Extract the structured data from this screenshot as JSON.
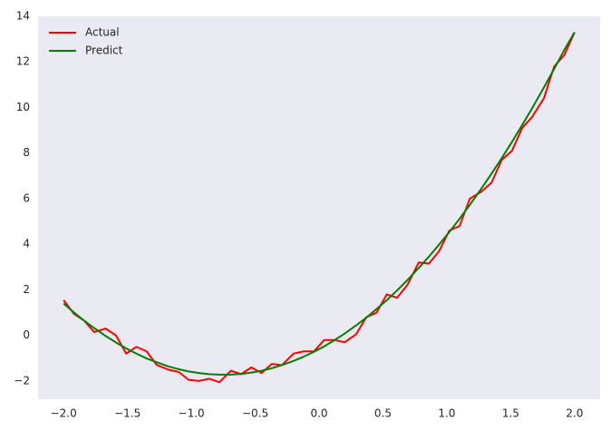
{
  "chart_data": {
    "type": "line",
    "x": [
      -2.0,
      -1.92,
      -1.84,
      -1.76,
      -1.67,
      -1.59,
      -1.51,
      -1.43,
      -1.35,
      -1.27,
      -1.18,
      -1.1,
      -1.02,
      -0.94,
      -0.86,
      -0.78,
      -0.69,
      -0.61,
      -0.53,
      -0.45,
      -0.37,
      -0.29,
      -0.2,
      -0.12,
      -0.04,
      0.04,
      0.12,
      0.2,
      0.29,
      0.37,
      0.45,
      0.53,
      0.61,
      0.69,
      0.78,
      0.86,
      0.94,
      1.02,
      1.1,
      1.18,
      1.27,
      1.35,
      1.43,
      1.51,
      1.59,
      1.67,
      1.76,
      1.84,
      1.92,
      2.0
    ],
    "series": [
      {
        "name": "Actual",
        "color": "#ff0000",
        "values": [
          1.55,
          0.95,
          0.65,
          0.15,
          0.3,
          0.0,
          -0.8,
          -0.5,
          -0.7,
          -1.3,
          -1.5,
          -1.6,
          -1.95,
          -2.0,
          -1.9,
          -2.05,
          -1.55,
          -1.7,
          -1.4,
          -1.65,
          -1.25,
          -1.3,
          -0.8,
          -0.7,
          -0.7,
          -0.2,
          -0.2,
          -0.3,
          0.05,
          0.8,
          1.0,
          1.8,
          1.65,
          2.2,
          3.2,
          3.15,
          3.7,
          4.6,
          4.8,
          6.0,
          6.3,
          6.7,
          7.7,
          8.1,
          9.1,
          9.6,
          10.4,
          11.8,
          12.3,
          13.3
        ]
      },
      {
        "name": "Predict",
        "color": "#008000",
        "values": [
          1.4,
          1.01,
          0.65,
          0.32,
          -0.03,
          -0.31,
          -0.57,
          -0.8,
          -1.01,
          -1.18,
          -1.36,
          -1.48,
          -1.58,
          -1.65,
          -1.7,
          -1.72,
          -1.72,
          -1.69,
          -1.63,
          -1.55,
          -1.44,
          -1.3,
          -1.12,
          -0.93,
          -0.72,
          -0.48,
          -0.21,
          0.08,
          0.44,
          0.78,
          1.16,
          1.55,
          1.97,
          2.42,
          2.96,
          3.46,
          3.99,
          4.54,
          5.12,
          5.73,
          6.44,
          7.1,
          7.78,
          8.49,
          9.23,
          9.99,
          10.88,
          11.69,
          12.53,
          13.3
        ]
      }
    ],
    "xlim": [
      -2.2,
      2.2
    ],
    "ylim": [
      -2.8,
      14
    ],
    "xticks": [
      {
        "value": -2.0,
        "label": "−2.0"
      },
      {
        "value": -1.5,
        "label": "−1.5"
      },
      {
        "value": -1.0,
        "label": "−1.0"
      },
      {
        "value": -0.5,
        "label": "−0.5"
      },
      {
        "value": 0.0,
        "label": "0.0"
      },
      0.5,
      {
        "value": 1.0,
        "label": "1.0"
      },
      1.5,
      {
        "value": 2.0,
        "label": "2.0"
      }
    ],
    "yticks": [
      {
        "value": -2,
        "label": "−2"
      },
      0,
      2,
      4,
      6,
      8,
      10,
      12,
      14
    ],
    "legend": "upper left",
    "grid": false
  }
}
